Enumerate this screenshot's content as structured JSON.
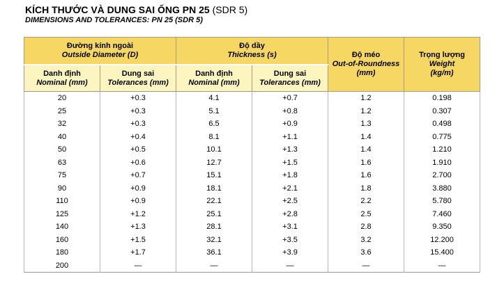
{
  "header": {
    "title_main": "KÍCH THƯỚC VÀ DUNG SAI ỐNG PN 25",
    "title_suffix": " (SDR 5)",
    "subtitle": "DIMENSIONS AND TOLERANCES: PN 25 (SDR 5)"
  },
  "colors": {
    "header_dark": "#F6D763",
    "header_light": "#FDF5BF",
    "grid": "#b9b8b2",
    "outer_border": "#97968f"
  },
  "table": {
    "groups": [
      {
        "vi": "Đường kính ngoài",
        "en": "Outside Diameter (D)"
      },
      {
        "vi": "Độ dầy",
        "en": "Thickness (s)"
      },
      {
        "vi": "Độ méo",
        "en": "Out-of-Roundness",
        "unit": "(mm)"
      },
      {
        "vi": "Trọng lượng",
        "en": "Weight",
        "unit": "(kg/m)"
      }
    ],
    "subheaders": [
      {
        "vi": "Danh định",
        "en": "Nominal (mm)"
      },
      {
        "vi": "Dung sai",
        "en": "Tolerances (mm)"
      },
      {
        "vi": "Danh định",
        "en": "Nominal (mm)"
      },
      {
        "vi": "Dung sai",
        "en": "Tolerances (mm)"
      }
    ],
    "rows": [
      [
        "20",
        "+0.3",
        "4.1",
        "+0.7",
        "1.2",
        "0.198"
      ],
      [
        "25",
        "+0.3",
        "5.1",
        "+0.8",
        "1.2",
        "0.307"
      ],
      [
        "32",
        "+0.3",
        "6.5",
        "+0.9",
        "1.3",
        "0.498"
      ],
      [
        "40",
        "+0.4",
        "8.1",
        "+1.1",
        "1.4",
        "0.775"
      ],
      [
        "50",
        "+0.5",
        "10.1",
        "+1.3",
        "1.4",
        "1.210"
      ],
      [
        "63",
        "+0.6",
        "12.7",
        "+1.5",
        "1.6",
        "1.910"
      ],
      [
        "75",
        "+0.7",
        "15.1",
        "+1.8",
        "1.6",
        "2.700"
      ],
      [
        "90",
        "+0.9",
        "18.1",
        "+2.1",
        "1.8",
        "3.880"
      ],
      [
        "110",
        "+0.9",
        "22.1",
        "+2.5",
        "2.2",
        "5.780"
      ],
      [
        "125",
        "+1.2",
        "25.1",
        "+2.8",
        "2.5",
        "7.460"
      ],
      [
        "140",
        "+1.3",
        "28.1",
        "+3.1",
        "2.8",
        "9.350"
      ],
      [
        "160",
        "+1.5",
        "32.1",
        "+3.5",
        "3.2",
        "12.200"
      ],
      [
        "180",
        "+1.7",
        "36.1",
        "+3.9",
        "3.6",
        "15.400"
      ],
      [
        "200",
        "—",
        "—",
        "—",
        "—",
        "—"
      ]
    ]
  }
}
